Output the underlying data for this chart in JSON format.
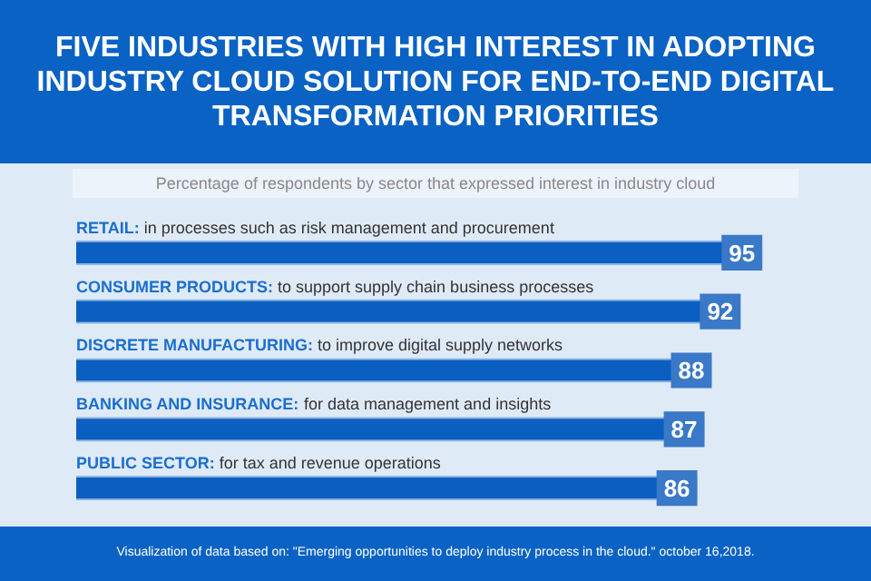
{
  "chart_data": {
    "type": "bar",
    "orientation": "horizontal",
    "title": "FIVE INDUSTRIES WITH HIGH INTEREST IN ADOPTING INDUSTRY CLOUD SOLUTION FOR END-TO-END DIGITAL TRANSFORMATION PRIORITIES",
    "subtitle": "Percentage of respondents by sector that expressed interest in industry cloud",
    "categories": [
      "RETAIL: in processes such as risk management and procurement",
      "CONSUMER PRODUCTS: to support supply chain business processes",
      "DISCRETE MANUFACTURING: to improve digital supply networks",
      "BANKING AND INSURANCE: for data management and insights",
      "PUBLIC SECTOR: for tax and revenue operations"
    ],
    "values": [
      95,
      92,
      88,
      87,
      86
    ],
    "color": "#0a5fc0",
    "data_labels": true,
    "legend": false,
    "annotations": [
      "Visualization of data based on: \"Emerging opportunities to deploy industry process in the cloud.\" october 16,2018."
    ]
  }
}
